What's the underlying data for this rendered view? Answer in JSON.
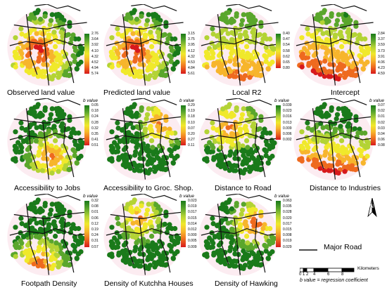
{
  "colors": {
    "ramp_green_to_red": [
      "#1a7a1a",
      "#5aa62c",
      "#b3d335",
      "#f0e92b",
      "#f7b52c",
      "#ee6a1f",
      "#d7191c"
    ],
    "ramp_red_to_green": [
      "#d7191c",
      "#ee6a1f",
      "#f7b52c",
      "#f0e92b",
      "#b3d335",
      "#5aa62c",
      "#1a7a1a"
    ],
    "road": "#111111",
    "halo": "#f6c9d6"
  },
  "panels": [
    {
      "id": "observed-land-value",
      "title": "Observed land value",
      "header": "",
      "ticks": [
        "2.76",
        "3.64",
        "3.92",
        "4.10",
        "4.32",
        "4.52",
        "4.94",
        "5.74"
      ],
      "ramp": "green_to_red",
      "field": "observed"
    },
    {
      "id": "predicted-land-value",
      "title": "Predicted land value",
      "header": "",
      "ticks": [
        "3.15",
        "3.75",
        "3.95",
        "4.12",
        "4.32",
        "4.53",
        "4.84",
        "5.61"
      ],
      "ramp": "green_to_red",
      "field": "observed"
    },
    {
      "id": "local-r2",
      "title": "Local R2",
      "header": "",
      "ticks": [
        "0.40",
        "0.47",
        "0.54",
        "0.58",
        "0.62",
        "0.65",
        "0.80"
      ],
      "ramp": "green_to_red",
      "field": "r2"
    },
    {
      "id": "intercept",
      "title": "Intercept",
      "header": "",
      "ticks": [
        "2.84",
        "3.37",
        "3.59",
        "3.73",
        "3.91",
        "4.06",
        "4.23",
        "4.59"
      ],
      "ramp": "green_to_red",
      "field": "intercept"
    },
    {
      "id": "accessibility-jobs",
      "title": "Accessibility to Jobs",
      "header": "b value",
      "ticks": [
        "0.05",
        "0.18",
        "0.24",
        "0.28",
        "0.32",
        "0.35",
        "0.41",
        "0.51"
      ],
      "ramp": "green_to_red",
      "field": "jobs"
    },
    {
      "id": "accessibility-groc",
      "title": "Accessibility to Groc. Shop.",
      "header": "b value",
      "ticks": [
        "0.29",
        "0.19",
        "0.18",
        "0.10",
        "0.07",
        "0.20",
        "0.27",
        "0.11"
      ],
      "ramp": "green_to_red",
      "field": "groc"
    },
    {
      "id": "distance-road",
      "title": "Distance to Road",
      "header": "b value",
      "ticks": [
        "0.039",
        "0.023",
        "0.016",
        "0.013",
        "0.009",
        "0.006",
        "0.002"
      ],
      "ramp": "green_to_red",
      "field": "road"
    },
    {
      "id": "distance-industries",
      "title": "Distance to Industries",
      "header": "b value",
      "ticks": [
        "0.07",
        "0.02",
        "0.01",
        "0.02",
        "0.03",
        "0.04",
        "0.06",
        "0.08"
      ],
      "ramp": "green_to_red",
      "field": "industries"
    },
    {
      "id": "footpath-density",
      "title": "Footpath Density",
      "header": "b value",
      "ticks": [
        "0.32",
        "0.08",
        "0.01",
        "0.06",
        "0.12",
        "0.19",
        "0.24",
        "0.31",
        "0.57"
      ],
      "ramp": "green_to_red",
      "field": "footpath"
    },
    {
      "id": "kutchha-houses",
      "title": "Density of Kutchha Houses",
      "header": "b value",
      "ticks": [
        "0.023",
        "0.019",
        "0.017",
        "0.015",
        "0.014",
        "0.012",
        "0.000",
        "0.005",
        "0.009"
      ],
      "ramp": "green_to_red",
      "field": "kutchha"
    },
    {
      "id": "hawking",
      "title": "Density of Hawking",
      "header": "b value",
      "ticks": [
        "0.063",
        "0.035",
        "0.028",
        "0.020",
        "0.017",
        "0.015",
        "0.008",
        "0.019",
        "0.029"
      ],
      "ramp": "green_to_red",
      "field": "hawking"
    }
  ],
  "legend_key": {
    "road_label": "Major Road",
    "scale_ticks": [
      "0",
      "1",
      "2",
      "4",
      "6",
      "8"
    ],
    "scale_unit": "Kilometers",
    "note": "b value = regression coefficient",
    "north": "N"
  }
}
